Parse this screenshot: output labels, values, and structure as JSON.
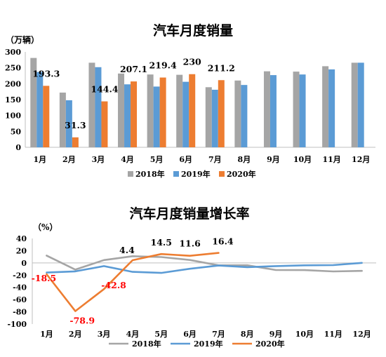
{
  "chart_data": [
    {
      "type": "bar",
      "title": "汽车月度销量",
      "ylabel": "（万辆）",
      "ylim": [
        0,
        300
      ],
      "yticks": [
        0,
        50,
        100,
        150,
        200,
        250,
        300
      ],
      "grid": false,
      "legend_position": "bottom",
      "categories": [
        "1月",
        "2月",
        "3月",
        "4月",
        "5月",
        "6月",
        "7月",
        "8月",
        "9月",
        "10月",
        "11月",
        "12月"
      ],
      "series": [
        {
          "name": "2018年",
          "color": "#a5a5a5",
          "values": [
            281,
            172,
            266,
            232,
            229,
            228,
            189,
            210,
            239,
            238,
            255,
            266
          ]
        },
        {
          "name": "2019年",
          "color": "#5b9bd5",
          "values": [
            237,
            148,
            252,
            198,
            191,
            206,
            181,
            196,
            227,
            229,
            245,
            266
          ]
        },
        {
          "name": "2020年",
          "color": "#ed7d31",
          "values": [
            193.3,
            31.3,
            144.4,
            207.1,
            219.4,
            230,
            211.2,
            null,
            null,
            null,
            null,
            null
          ]
        }
      ],
      "data_labels": [
        {
          "text": "193.3",
          "category": "1月",
          "value": 193.3
        },
        {
          "text": "31.3",
          "category": "2月",
          "value": 31.3
        },
        {
          "text": "144.4",
          "category": "3月",
          "value": 144.4
        },
        {
          "text": "207.1",
          "category": "4月",
          "value": 207.1
        },
        {
          "text": "219.4",
          "category": "5月",
          "value": 219.4
        },
        {
          "text": "230",
          "category": "6月",
          "value": 230
        },
        {
          "text": "211.2",
          "category": "7月",
          "value": 211.2
        }
      ]
    },
    {
      "type": "line",
      "title": "汽车月度销量增长率",
      "ylabel": "（%）",
      "ylim": [
        -100,
        40
      ],
      "yticks": [
        -100,
        -80,
        -60,
        -40,
        -20,
        0,
        20,
        40
      ],
      "grid": false,
      "legend_position": "bottom",
      "categories": [
        "1月",
        "2月",
        "3月",
        "4月",
        "5月",
        "6月",
        "7月",
        "8月",
        "9月",
        "10月",
        "11月",
        "12月"
      ],
      "series": [
        {
          "name": "2018年",
          "color": "#a5a5a5",
          "values": [
            12,
            -11,
            4.7,
            11,
            9.6,
            4.8,
            -4,
            -3.8,
            -11.6,
            -11.7,
            -13.9,
            -13
          ]
        },
        {
          "name": "2019年",
          "color": "#5b9bd5",
          "values": [
            -15.8,
            -13.8,
            -5.2,
            -14.6,
            -16.4,
            -9.6,
            -4.3,
            -6.9,
            -5.2,
            -4,
            -3.6,
            0.1
          ]
        },
        {
          "name": "2020年",
          "color": "#ed7d31",
          "values": [
            -18.5,
            -78.9,
            -42.8,
            4.4,
            14.5,
            11.6,
            16.4,
            null,
            null,
            null,
            null,
            null
          ]
        }
      ],
      "data_labels": [
        {
          "text": "-18.5",
          "category": "1月",
          "value": -18.5,
          "color": "#ff0000"
        },
        {
          "text": "-78.9",
          "category": "2月",
          "value": -78.9,
          "color": "#ff0000"
        },
        {
          "text": "-42.8",
          "category": "3月",
          "value": -42.8,
          "color": "#ff0000"
        },
        {
          "text": "4.4",
          "category": "4月",
          "value": 4.4,
          "color": "#000000"
        },
        {
          "text": "14.5",
          "category": "5月",
          "value": 14.5,
          "color": "#000000"
        },
        {
          "text": "11.6",
          "category": "6月",
          "value": 11.6,
          "color": "#000000"
        },
        {
          "text": "16.4",
          "category": "7月",
          "value": 16.4,
          "color": "#000000"
        }
      ]
    }
  ]
}
